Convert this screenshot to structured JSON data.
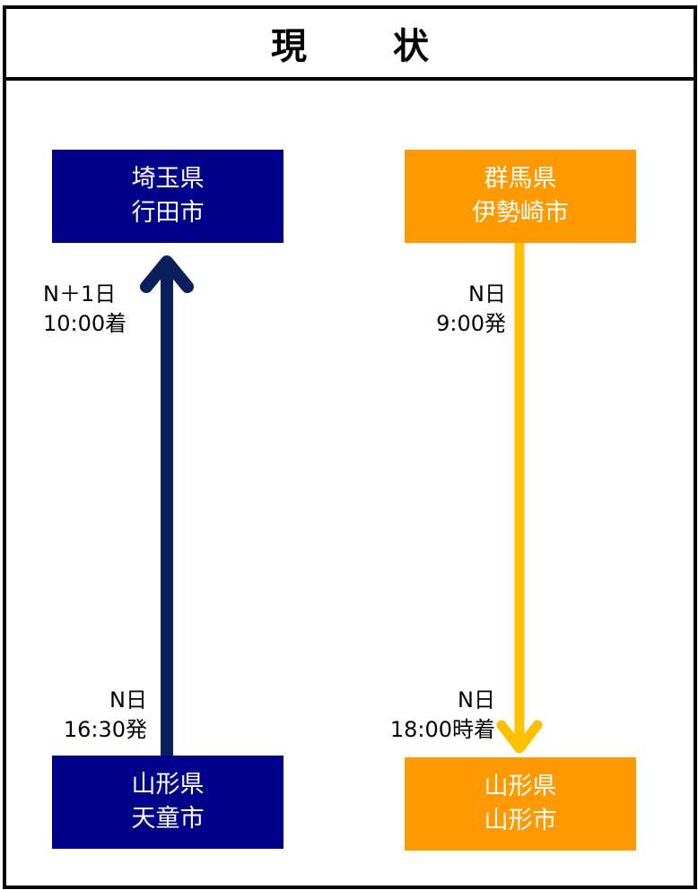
{
  "header": {
    "title_left": "現",
    "title_right": "状"
  },
  "route_left": {
    "destination": {
      "line1": "埼玉県",
      "line2": "行田市"
    },
    "origin": {
      "line1": "山形県",
      "line2": "天童市"
    },
    "arrive_label": {
      "line1": "N＋1日",
      "line2": "10:00着"
    },
    "depart_label": {
      "line1": "N日",
      "line2": "16:30発"
    },
    "arrow_color": "#0a1f5c",
    "box_color": "#00008b"
  },
  "route_right": {
    "origin": {
      "line1": "群馬県",
      "line2": "伊勢崎市"
    },
    "destination": {
      "line1": "山形県",
      "line2": "山形市"
    },
    "depart_label": {
      "line1": "N日",
      "line2": "9:00発"
    },
    "arrive_label": {
      "line1": "N日",
      "line2": "18:00時着"
    },
    "arrow_color": "#ffc000",
    "box_color": "#ff9900"
  }
}
